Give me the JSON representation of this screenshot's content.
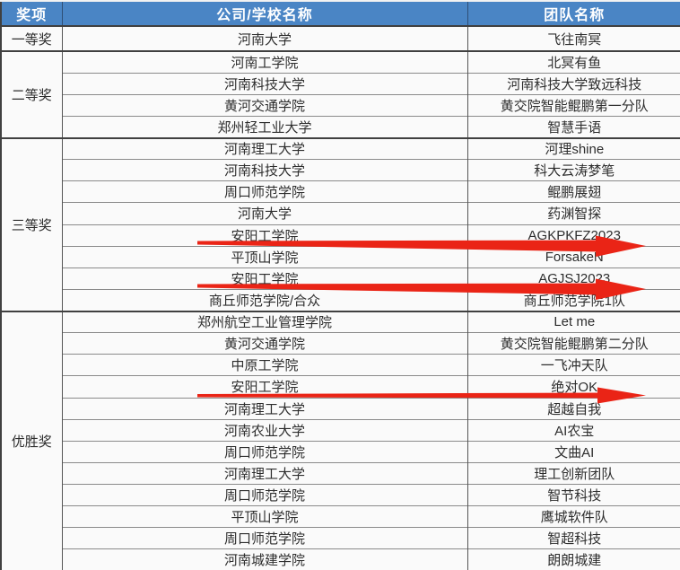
{
  "columns": [
    "奖项",
    "公司/学校名称",
    "团队名称"
  ],
  "sections": [
    {
      "award": "一等奖",
      "rows": [
        {
          "school": "河南大学",
          "team": "飞往南冥"
        }
      ]
    },
    {
      "award": "二等奖",
      "rows": [
        {
          "school": "河南工学院",
          "team": "北冥有鱼"
        },
        {
          "school": "河南科技大学",
          "team": "河南科技大学致远科技"
        },
        {
          "school": "黄河交通学院",
          "team": "黄交院智能鲲鹏第一分队"
        },
        {
          "school": "郑州轻工业大学",
          "team": "智慧手语"
        }
      ]
    },
    {
      "award": "三等奖",
      "rows": [
        {
          "school": "河南理工大学",
          "team": "河理shine"
        },
        {
          "school": "河南科技大学",
          "team": "科大云涛梦笔"
        },
        {
          "school": "周口师范学院",
          "team": "鲲鹏展翅"
        },
        {
          "school": "河南大学",
          "team": "药渊智探"
        },
        {
          "school": "安阳工学院",
          "team": "AGKPKFZ2023",
          "arrow": "thick"
        },
        {
          "school": "平顶山学院",
          "team": "ForsakeN"
        },
        {
          "school": "安阳工学院",
          "team": "AGJSJ2023",
          "arrow": "thick"
        },
        {
          "school": "商丘师范学院/合众",
          "team": "商丘师范学院1队"
        }
      ]
    },
    {
      "award": "优胜奖",
      "rows": [
        {
          "school": "郑州航空工业管理学院",
          "team": "Let me"
        },
        {
          "school": "黄河交通学院",
          "team": "黄交院智能鲲鹏第二分队"
        },
        {
          "school": "中原工学院",
          "team": "一飞冲天队"
        },
        {
          "school": "安阳工学院",
          "team": "绝对OK",
          "arrow": "thin"
        },
        {
          "school": "河南理工大学",
          "team": "超越自我"
        },
        {
          "school": "河南农业大学",
          "team": "AI农宝"
        },
        {
          "school": "周口师范学院",
          "team": "文曲AI"
        },
        {
          "school": "河南理工大学",
          "team": "理工创新团队"
        },
        {
          "school": "周口师范学院",
          "team": "智节科技"
        },
        {
          "school": "平顶山学院",
          "team": "鹰城软件队"
        },
        {
          "school": "周口师范学院",
          "team": "智超科技"
        },
        {
          "school": "河南城建学院",
          "team": "朗朗城建"
        }
      ]
    }
  ],
  "colors": {
    "header_bg": "#4a85c5",
    "header_text": "#ffffff",
    "arrow_red": "#ea2416",
    "border_dark": "#404040",
    "cell_bg": "#fafafa",
    "text": "#2d2d2d"
  }
}
